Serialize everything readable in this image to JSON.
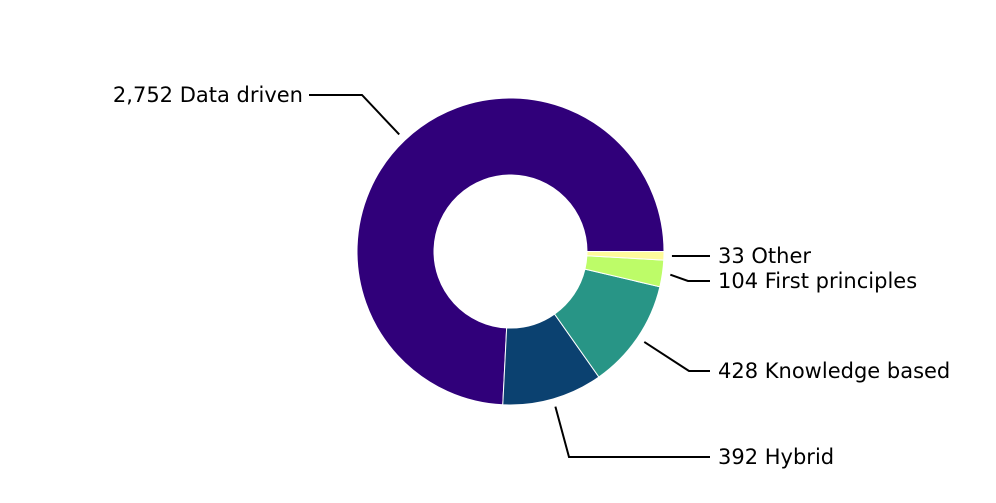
{
  "chart_data": {
    "type": "pie",
    "variant": "donut",
    "title": "",
    "slices": [
      {
        "label": "Data driven",
        "value": 2752,
        "display": "2,752 Data driven",
        "color": "#30007a"
      },
      {
        "label": "Hybrid",
        "value": 392,
        "display": "392 Hybrid",
        "color": "#0b4170"
      },
      {
        "label": "Knowledge based",
        "value": 428,
        "display": "428 Knowledge based",
        "color": "#289586"
      },
      {
        "label": "First principles",
        "value": 104,
        "display": "104 First principles",
        "color": "#bdfc68"
      },
      {
        "label": "Other",
        "value": 33,
        "display": "33 Other",
        "color": "#fefb9c"
      }
    ],
    "legend": "none",
    "grid": false
  }
}
